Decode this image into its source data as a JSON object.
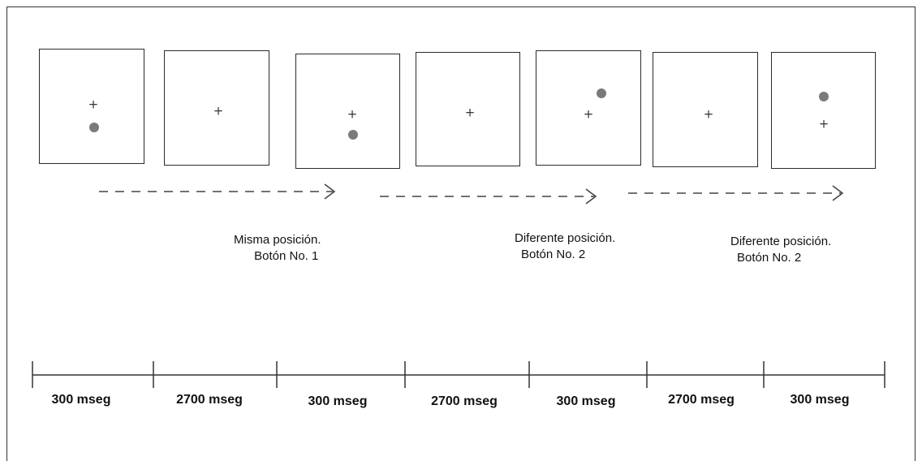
{
  "trials": [
    {
      "stimulus": "probe",
      "dot": "below"
    },
    {
      "stimulus": "fixation-only",
      "dot": "none"
    },
    {
      "stimulus": "probe",
      "dot": "below"
    },
    {
      "stimulus": "fixation-only",
      "dot": "none"
    },
    {
      "stimulus": "probe",
      "dot": "above"
    },
    {
      "stimulus": "fixation-only",
      "dot": "none"
    },
    {
      "stimulus": "probe",
      "dot": "above"
    }
  ],
  "fixation_symbol": "+",
  "responses": [
    {
      "line1": "Misma posición.",
      "line2": "Botón No. 1"
    },
    {
      "line1": "Diferente posición.",
      "line2": "Botón No. 2"
    },
    {
      "line1": "Diferente posición.",
      "line2": "Botón No. 2"
    }
  ],
  "timeline": {
    "durations": [
      "300 mseg",
      "2700 mseg",
      "300 mseg",
      "2700 mseg",
      "300 mseg",
      "2700 mseg",
      "300 mseg"
    ]
  },
  "colors": {
    "line": "#2b2b2b",
    "dot": "#7a7a7a",
    "arrow": "#444444"
  }
}
